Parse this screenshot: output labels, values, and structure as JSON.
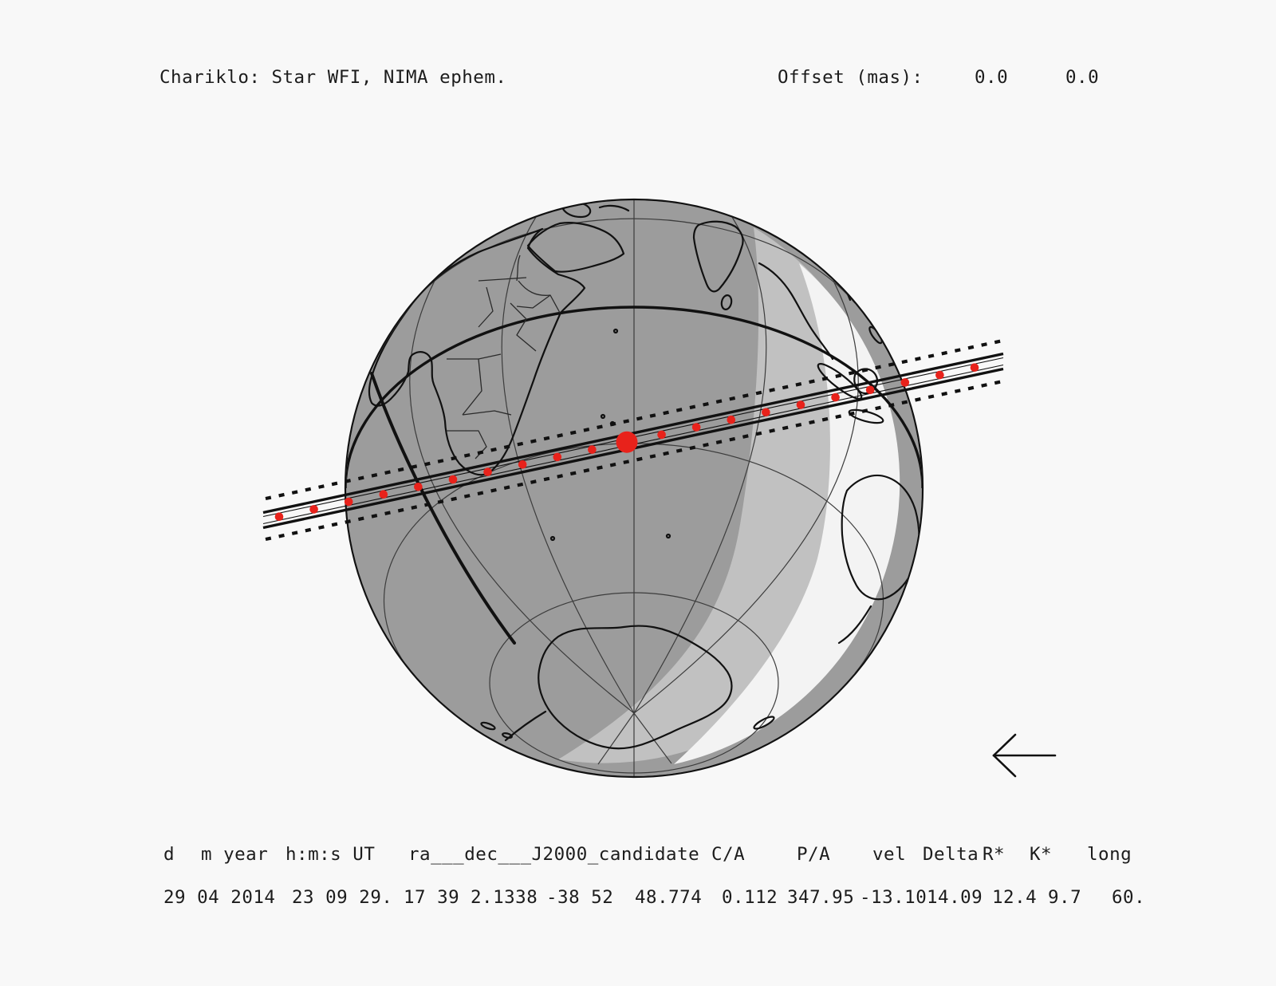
{
  "title": "Chariklo: Star WFI, NIMA ephem.",
  "offset": {
    "label": "Offset (mas):",
    "values": [
      "0.0",
      "0.0"
    ]
  },
  "table": {
    "headers": [
      "d",
      "m year",
      "h:m:s UT",
      "ra___dec___J2000_candidate",
      "C/A",
      "P/A",
      "vel",
      "Delta",
      "R*",
      "K*",
      "long"
    ],
    "row": [
      "29 04 2014",
      "23 09 29.",
      "17 39",
      "2.1338",
      "-38 52",
      "48.774",
      "0.112",
      "347.95",
      "-13.10",
      "14.09",
      "12.4",
      "9.7",
      "60."
    ]
  },
  "map": {
    "colors": {
      "background": "#f8f8f8",
      "night": "#9c9c9c",
      "twilight": "#c1c1c1",
      "day": "#f3f3f3",
      "outline": "#111111",
      "border": "#2a2a2a",
      "graticule": "#3c3c3c",
      "track_dot": "#e8221b",
      "track_line": "#111111"
    }
  },
  "chart_data": {
    "type": "map",
    "subject": "stellar occultation shadow track across Earth globe (Chariklo)",
    "track_points": 21,
    "highlighted_point_index": 10,
    "offsets_mas": [
      "0.0",
      "0.0"
    ],
    "event": {
      "d_m_year": "29 04 2014",
      "hms_ut": "23 09 29.",
      "ra_j2000": "17 39 2.1338",
      "dec_j2000": "-38 52 48.774",
      "C/A": "0.112",
      "P/A": "347.95",
      "vel": "-13.10",
      "Delta": "14.09",
      "R*": "12.4",
      "K*": "9.7",
      "long": "60."
    }
  }
}
